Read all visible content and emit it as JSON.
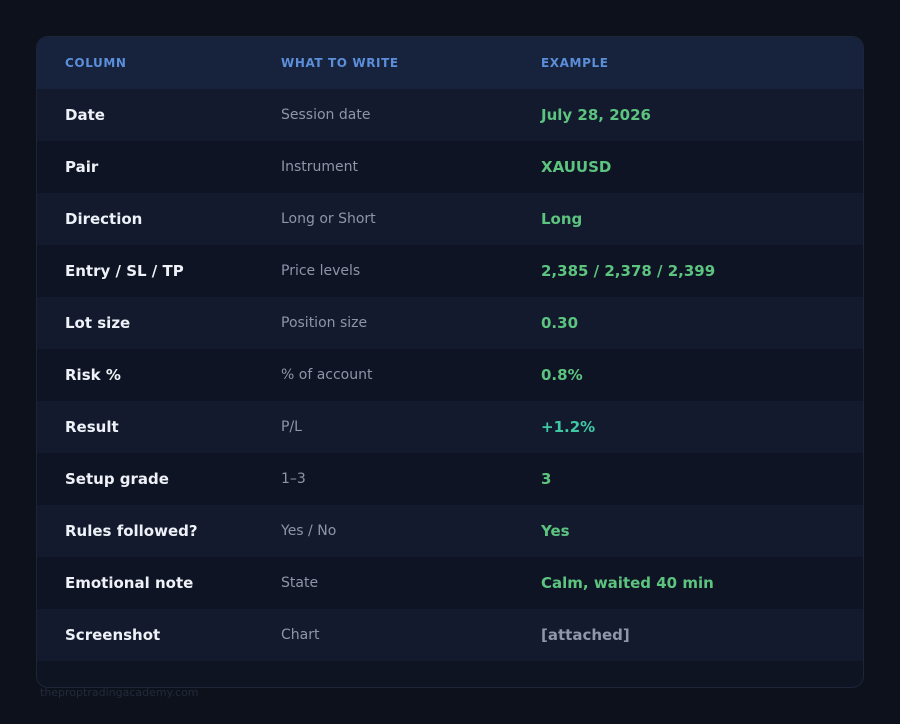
{
  "table": {
    "headers": {
      "column": "COLUMN",
      "what_to_write": "WHAT TO WRITE",
      "example": "EXAMPLE"
    },
    "rows": [
      {
        "column": "Date",
        "what_to_write": "Session date",
        "example": "July 28, 2026"
      },
      {
        "column": "Pair",
        "what_to_write": "Instrument",
        "example": "XAUUSD"
      },
      {
        "column": "Direction",
        "what_to_write": "Long or Short",
        "example": "Long"
      },
      {
        "column": "Entry / SL / TP",
        "what_to_write": "Price levels",
        "example": "2,385 / 2,378 / 2,399"
      },
      {
        "column": "Lot size",
        "what_to_write": "Position size",
        "example": "0.30"
      },
      {
        "column": "Risk %",
        "what_to_write": "% of account",
        "example": "0.8%"
      },
      {
        "column": "Result",
        "what_to_write": "P/L",
        "example": "+1.2%"
      },
      {
        "column": "Setup grade",
        "what_to_write": "1–3",
        "example": "3"
      },
      {
        "column": "Rules followed?",
        "what_to_write": "Yes / No",
        "example": "Yes"
      },
      {
        "column": "Emotional note",
        "what_to_write": "State",
        "example": "Calm, waited 40 min"
      },
      {
        "column": "Screenshot",
        "what_to_write": "Chart",
        "example": "[attached]"
      }
    ]
  },
  "watermark": "theproptradingacademy.com",
  "colors": {
    "background": "#0d111c",
    "header_bg": "#17223d",
    "header_text": "#5b8fd9",
    "example_green": "#5cc47f",
    "result_teal": "#3ec9a5",
    "muted_example": "#8f97ab"
  }
}
